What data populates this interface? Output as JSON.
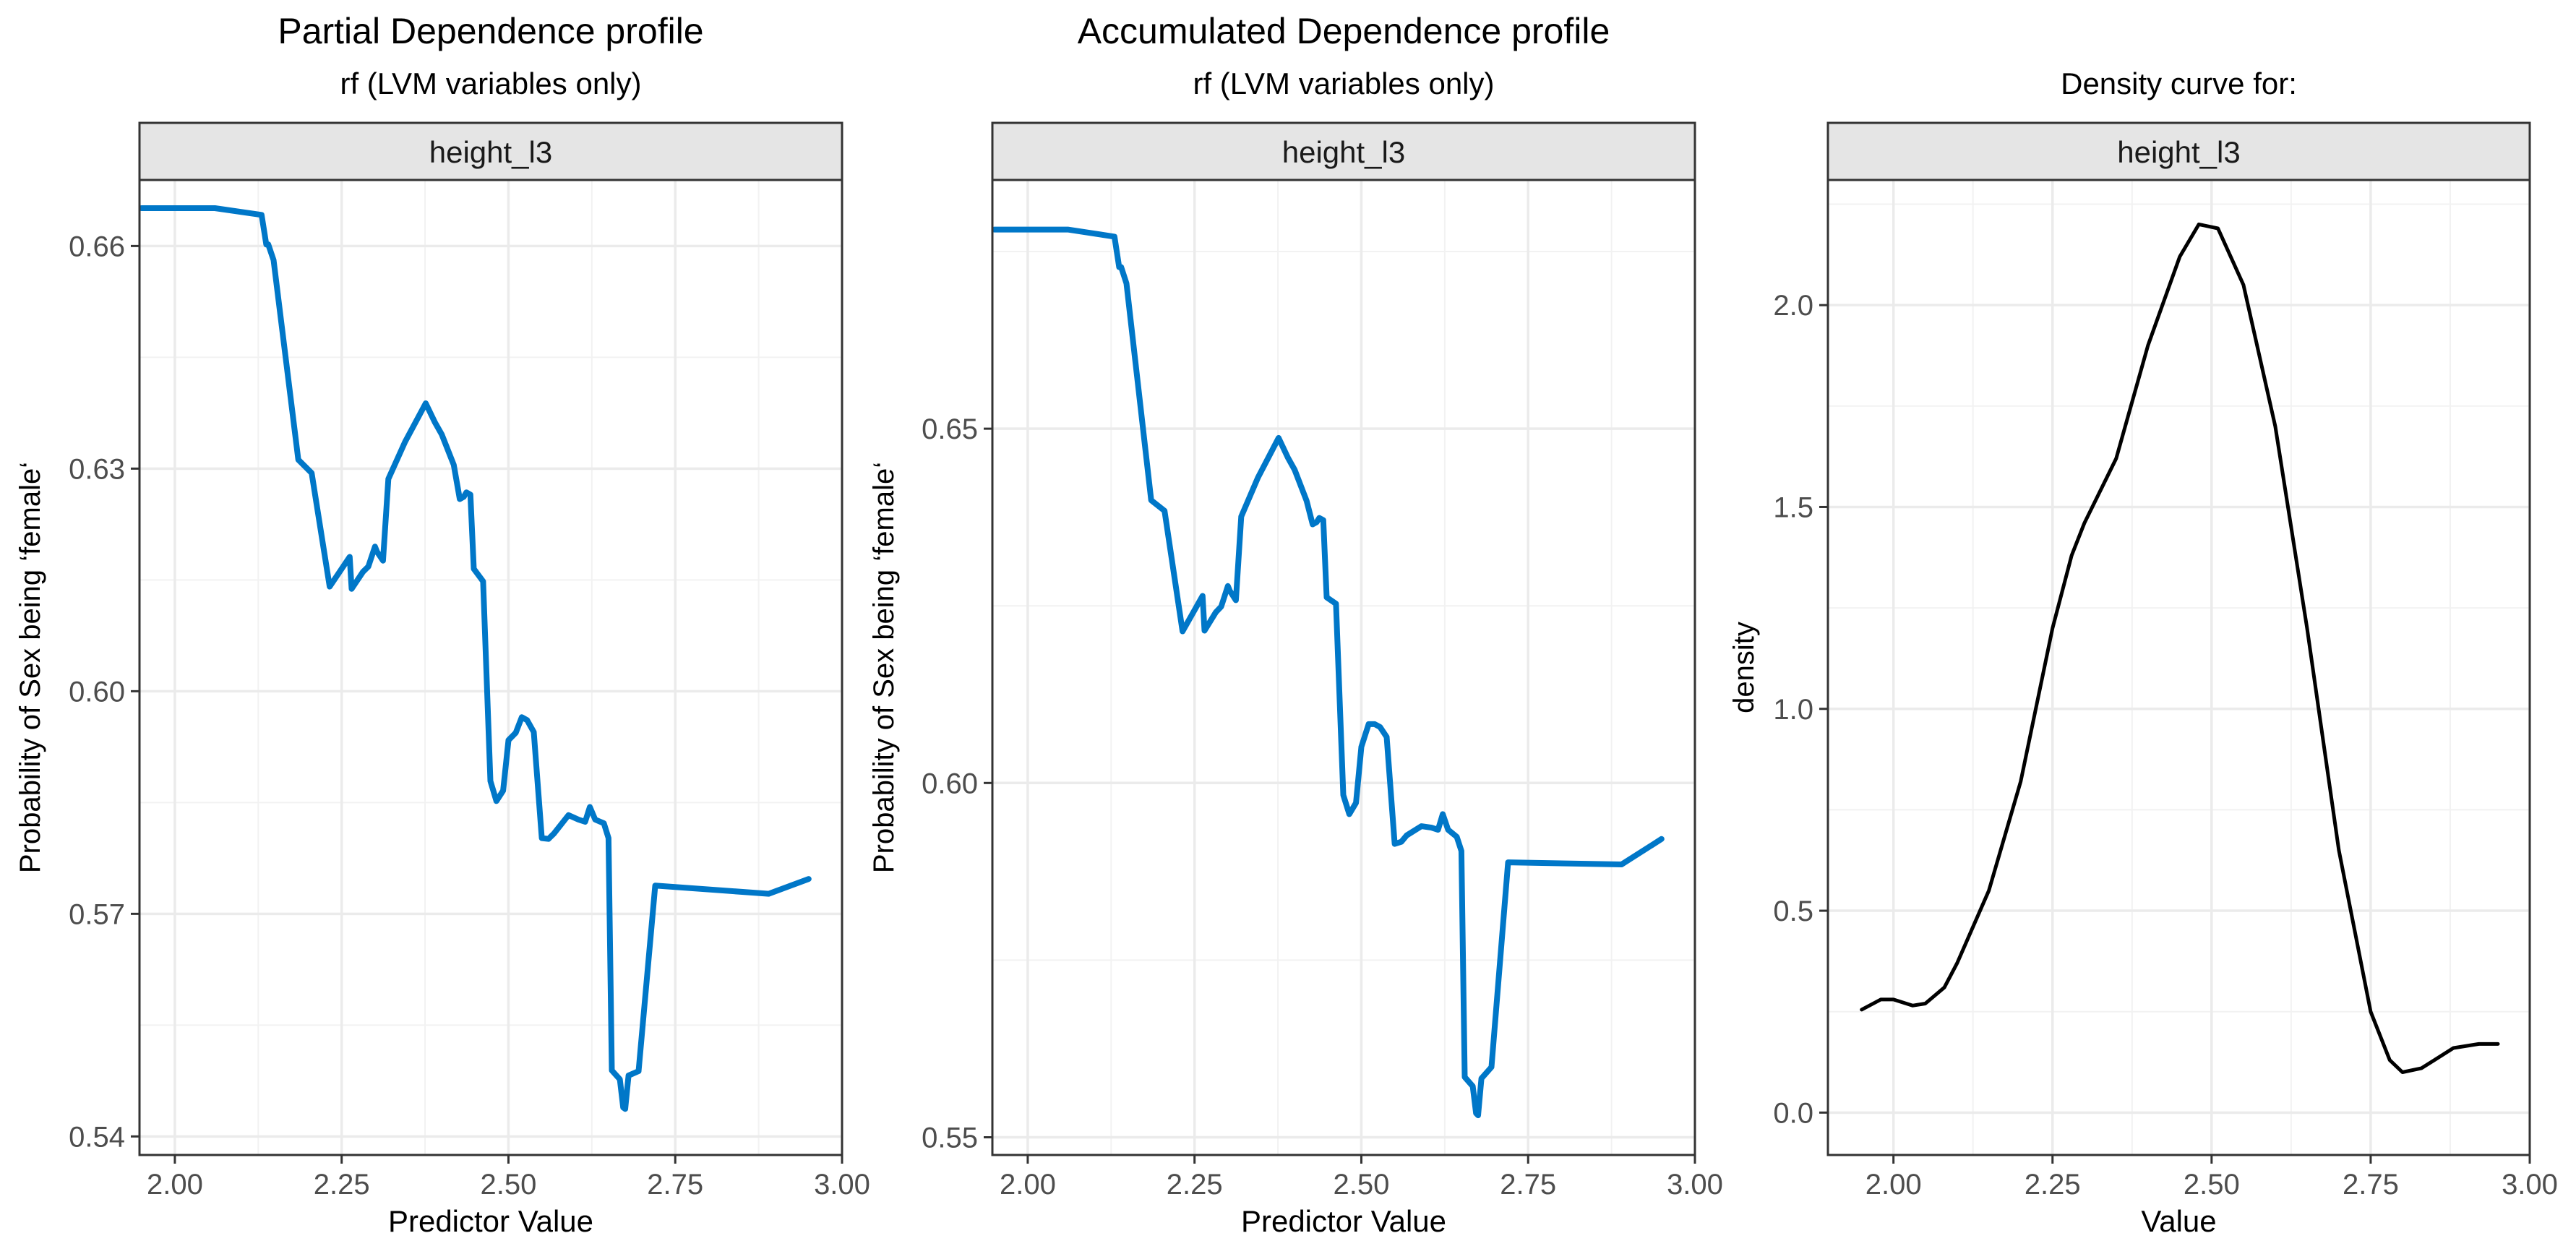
{
  "chart_data": [
    {
      "type": "line",
      "title": "Partial Dependence profile",
      "subtitle": "rf (LVM variables only)",
      "facet_label": "height_l3",
      "xlabel": "Predictor Value",
      "ylabel": "Probability of Sex being ‘female‘",
      "xlim": [
        1.947,
        3.0
      ],
      "ylim": [
        0.5375,
        0.6689
      ],
      "x_ticks": [
        2.0,
        2.25,
        2.5,
        2.75,
        3.0
      ],
      "x_tick_labels": [
        "2.00",
        "2.25",
        "2.50",
        "2.75",
        "3.00"
      ],
      "y_ticks": [
        0.54,
        0.57,
        0.6,
        0.63,
        0.66
      ],
      "y_tick_labels": [
        "0.54",
        "0.57",
        "0.60",
        "0.63",
        "0.66"
      ],
      "grid": true,
      "line_color": "#0077c8",
      "series": [
        {
          "x": [
            1.95,
            2.06,
            2.13,
            2.137,
            2.14,
            2.148,
            2.185,
            2.205,
            2.232,
            2.262,
            2.265,
            2.282,
            2.29,
            2.3,
            2.303,
            2.312,
            2.32,
            2.345,
            2.376,
            2.39,
            2.4,
            2.418,
            2.427,
            2.433,
            2.437,
            2.443,
            2.448,
            2.462,
            2.473,
            2.482,
            2.492,
            2.5,
            2.511,
            2.52,
            2.528,
            2.538,
            2.55,
            2.56,
            2.568,
            2.59,
            2.605,
            2.615,
            2.622,
            2.63,
            2.643,
            2.65,
            2.655,
            2.667,
            2.672,
            2.675,
            2.68,
            2.695,
            2.72,
            2.89,
            2.95
          ],
          "y": [
            0.6651,
            0.6651,
            0.6642,
            0.6602,
            0.6602,
            0.6581,
            0.6312,
            0.6294,
            0.6141,
            0.6181,
            0.6138,
            0.6161,
            0.6168,
            0.6195,
            0.6188,
            0.6176,
            0.6286,
            0.6336,
            0.6388,
            0.6362,
            0.6346,
            0.6305,
            0.6259,
            0.6262,
            0.6268,
            0.6265,
            0.6165,
            0.6148,
            0.5879,
            0.5852,
            0.5866,
            0.5934,
            0.5944,
            0.5965,
            0.5961,
            0.5945,
            0.5802,
            0.5801,
            0.5808,
            0.5833,
            0.5827,
            0.5824,
            0.5844,
            0.5827,
            0.5822,
            0.5802,
            0.5489,
            0.5477,
            0.5439,
            0.5437,
            0.5482,
            0.5488,
            0.5738,
            0.5727,
            0.5747
          ]
        }
      ]
    },
    {
      "type": "line",
      "title": "Accumulated Dependence profile",
      "subtitle": "rf (LVM variables only)",
      "facet_label": "height_l3",
      "xlabel": "Predictor Value",
      "ylabel": "Probability of Sex being ‘female‘",
      "xlim": [
        1.947,
        3.0
      ],
      "ylim": [
        0.5475,
        0.6851
      ],
      "x_ticks": [
        2.0,
        2.25,
        2.5,
        2.75,
        3.0
      ],
      "x_tick_labels": [
        "2.00",
        "2.25",
        "2.50",
        "2.75",
        "3.00"
      ],
      "y_ticks": [
        0.55,
        0.6,
        0.65
      ],
      "y_tick_labels": [
        "0.55",
        "0.60",
        "0.65"
      ],
      "grid": true,
      "line_color": "#0077c8",
      "series": [
        {
          "x": [
            1.95,
            2.06,
            2.13,
            2.137,
            2.14,
            2.148,
            2.185,
            2.205,
            2.232,
            2.262,
            2.265,
            2.282,
            2.29,
            2.3,
            2.303,
            2.312,
            2.32,
            2.345,
            2.376,
            2.39,
            2.4,
            2.418,
            2.427,
            2.433,
            2.437,
            2.443,
            2.448,
            2.462,
            2.473,
            2.482,
            2.492,
            2.5,
            2.511,
            2.52,
            2.528,
            2.538,
            2.55,
            2.56,
            2.568,
            2.59,
            2.605,
            2.615,
            2.622,
            2.63,
            2.643,
            2.65,
            2.655,
            2.667,
            2.672,
            2.675,
            2.68,
            2.695,
            2.72,
            2.89,
            2.95
          ],
          "y": [
            0.6781,
            0.6781,
            0.6771,
            0.6728,
            0.6728,
            0.6705,
            0.6399,
            0.6384,
            0.6214,
            0.6264,
            0.6215,
            0.6241,
            0.6249,
            0.6278,
            0.6271,
            0.6258,
            0.6376,
            0.6431,
            0.6487,
            0.6459,
            0.6442,
            0.6398,
            0.6365,
            0.6368,
            0.6374,
            0.6371,
            0.6262,
            0.6253,
            0.5983,
            0.5956,
            0.5972,
            0.6051,
            0.6083,
            0.6083,
            0.6079,
            0.6065,
            0.5914,
            0.5917,
            0.5926,
            0.5939,
            0.5937,
            0.5934,
            0.5956,
            0.5934,
            0.5924,
            0.5904,
            0.5585,
            0.5572,
            0.5534,
            0.5531,
            0.5583,
            0.5599,
            0.5888,
            0.5885,
            0.5921
          ]
        }
      ]
    },
    {
      "type": "line",
      "title": "",
      "subtitle": "Density curve for:",
      "facet_label": "height_l3",
      "xlabel": "Value",
      "ylabel": "density",
      "xlim": [
        1.897,
        3.0
      ],
      "ylim": [
        -0.105,
        2.31
      ],
      "x_ticks": [
        2.0,
        2.25,
        2.5,
        2.75,
        3.0
      ],
      "x_tick_labels": [
        "2.00",
        "2.25",
        "2.50",
        "2.75",
        "3.00"
      ],
      "y_ticks": [
        0.0,
        0.5,
        1.0,
        1.5,
        2.0
      ],
      "y_tick_labels": [
        "0.0",
        "0.5",
        "1.0",
        "1.5",
        "2.0"
      ],
      "grid": true,
      "line_color": "#000000",
      "series": [
        {
          "x": [
            1.95,
            1.98,
            2.0,
            2.03,
            2.05,
            2.08,
            2.1,
            2.15,
            2.2,
            2.25,
            2.28,
            2.3,
            2.35,
            2.4,
            2.45,
            2.48,
            2.51,
            2.55,
            2.6,
            2.65,
            2.7,
            2.75,
            2.78,
            2.8,
            2.83,
            2.85,
            2.88,
            2.92,
            2.95
          ],
          "y": [
            0.255,
            0.28,
            0.28,
            0.265,
            0.27,
            0.31,
            0.37,
            0.55,
            0.82,
            1.2,
            1.38,
            1.46,
            1.62,
            1.9,
            2.12,
            2.2,
            2.19,
            2.05,
            1.7,
            1.2,
            0.65,
            0.25,
            0.13,
            0.1,
            0.11,
            0.13,
            0.16,
            0.17,
            0.17
          ]
        }
      ]
    }
  ]
}
